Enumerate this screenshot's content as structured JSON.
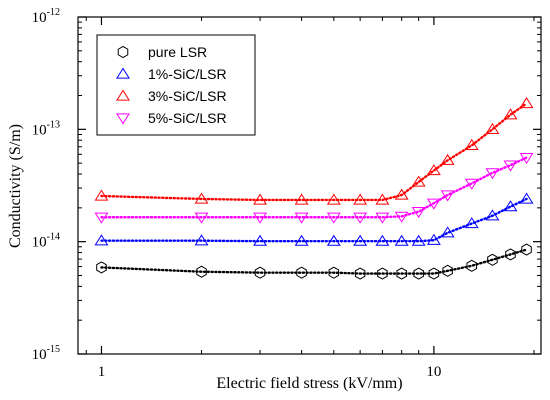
{
  "chart_data": {
    "type": "scatter",
    "title": "",
    "xlabel": "Electric field stress (kV/mm)",
    "ylabel": "Conductivity (S/m)",
    "x_scale": "log",
    "y_scale": "log",
    "xlim": [
      0.85,
      21
    ],
    "ylim": [
      1e-15,
      1e-12
    ],
    "x_ticks": [
      {
        "value": 1,
        "label": "1"
      },
      {
        "value": 10,
        "label": "10"
      }
    ],
    "y_ticks": [
      {
        "value": 1e-15,
        "base": "10",
        "exp": "-15"
      },
      {
        "value": 1e-14,
        "base": "10",
        "exp": "-14"
      },
      {
        "value": 1e-13,
        "base": "10",
        "exp": "-13"
      },
      {
        "value": 1e-12,
        "base": "10",
        "exp": "-12"
      }
    ],
    "grid": false,
    "legend_position": "top-left",
    "fit_lines": "dotted",
    "series": [
      {
        "name": "pure LSR",
        "color": "#000000",
        "marker": "hexagon",
        "x": [
          1,
          2,
          3,
          4,
          5,
          6,
          7,
          8,
          9,
          10,
          11,
          13,
          15,
          17,
          19
        ],
        "y": [
          5.9e-15,
          5.4e-15,
          5.3e-15,
          5.3e-15,
          5.3e-15,
          5.2e-15,
          5.2e-15,
          5.2e-15,
          5.2e-15,
          5.2e-15,
          5.5e-15,
          6.1e-15,
          6.9e-15,
          7.7e-15,
          8.5e-15
        ]
      },
      {
        "name": "1%-SiC/LSR",
        "color": "#0000ff",
        "marker": "triangle-up",
        "x": [
          1,
          2,
          3,
          4,
          5,
          6,
          7,
          8,
          9,
          10,
          11,
          13,
          15,
          17,
          19
        ],
        "y": [
          1.02e-14,
          1.02e-14,
          1.01e-14,
          1.01e-14,
          1.01e-14,
          1.01e-14,
          1.01e-14,
          1.01e-14,
          1.01e-14,
          1.03e-14,
          1.2e-14,
          1.45e-14,
          1.7e-14,
          2.05e-14,
          2.4e-14
        ]
      },
      {
        "name": "3%-SiC/LSR",
        "color": "#ff0000",
        "marker": "triangle-up",
        "x": [
          1,
          2,
          3,
          4,
          5,
          6,
          7,
          8,
          9,
          10,
          11,
          13,
          15,
          17,
          19
        ],
        "y": [
          2.55e-14,
          2.4e-14,
          2.35e-14,
          2.35e-14,
          2.35e-14,
          2.35e-14,
          2.35e-14,
          2.6e-14,
          3.4e-14,
          4.3e-14,
          5.3e-14,
          7.2e-14,
          1e-13,
          1.35e-13,
          1.7e-13
        ]
      },
      {
        "name": "5%-SiC/LSR",
        "color": "#ff00ff",
        "marker": "triangle-down",
        "x": [
          1,
          2,
          3,
          4,
          5,
          6,
          7,
          8,
          9,
          10,
          11,
          13,
          15,
          17,
          19
        ],
        "y": [
          1.65e-14,
          1.65e-14,
          1.65e-14,
          1.65e-14,
          1.65e-14,
          1.65e-14,
          1.65e-14,
          1.68e-14,
          1.85e-14,
          2.2e-14,
          2.6e-14,
          3.3e-14,
          4.1e-14,
          4.8e-14,
          5.6e-14
        ]
      }
    ]
  }
}
